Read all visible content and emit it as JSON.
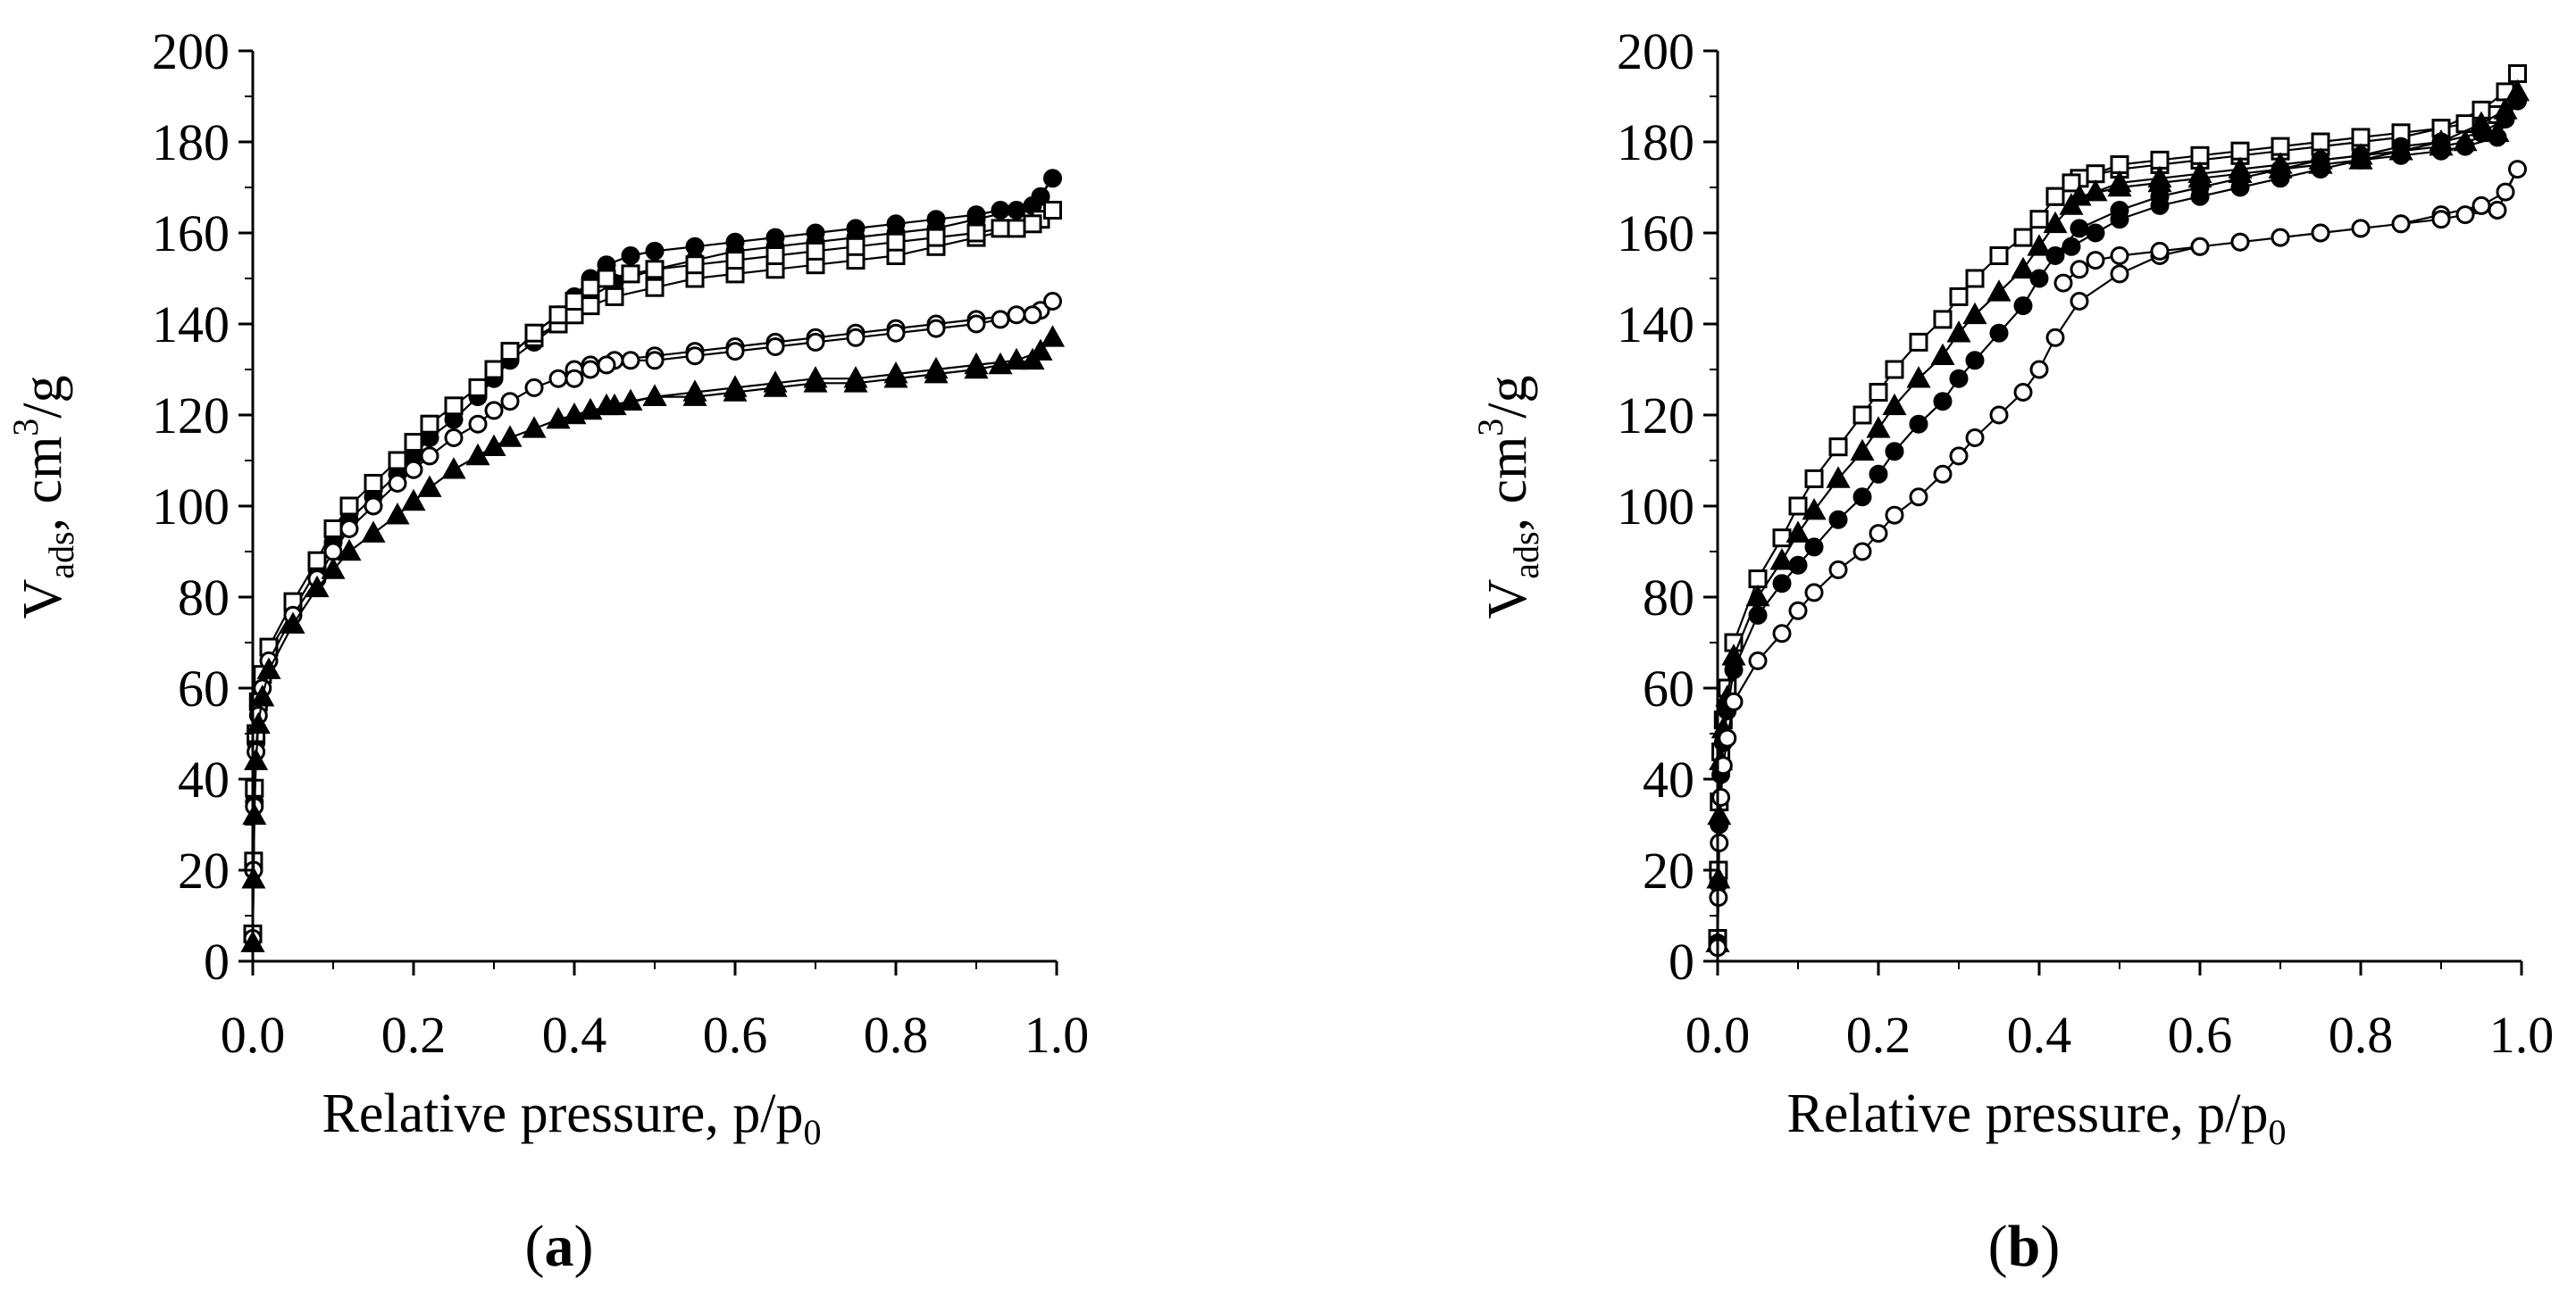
{
  "figure": {
    "panels": [
      {
        "open": "(",
        "letter": "a",
        "close": ")"
      },
      {
        "open": "(",
        "letter": "b",
        "close": ")"
      }
    ]
  },
  "chart_data": [
    {
      "id": "a",
      "type": "scatter",
      "title": "(a)",
      "panel_label": "(a)",
      "xlabel": "Relative pressure, p/p0",
      "ylabel": "Vads, cm3/g",
      "xlabel_parts": {
        "main": "Relative pressure, p/p",
        "sub": "0"
      },
      "ylabel_parts": {
        "main": "V",
        "sub": "ads",
        "rest": ", cm",
        "sup": "3",
        "end": "/g"
      },
      "xlim": [
        0,
        1.0
      ],
      "ylim": [
        0,
        200
      ],
      "xticks": [
        0.0,
        0.2,
        0.4,
        0.6,
        0.8,
        1.0
      ],
      "xtick_labels": [
        "0.0",
        "0.2",
        "0.4",
        "0.6",
        "0.8",
        "1.0"
      ],
      "yticks": [
        0,
        20,
        40,
        60,
        80,
        100,
        120,
        140,
        160,
        180,
        200
      ],
      "ytick_labels": [
        "0",
        "20",
        "40",
        "60",
        "80",
        "100",
        "120",
        "140",
        "160",
        "180",
        "200"
      ],
      "grid": false,
      "series": [
        {
          "name": "filled circles",
          "marker": "circle",
          "fill": "#000000",
          "x": [
            0.0,
            0.001,
            0.002,
            0.004,
            0.007,
            0.012,
            0.02,
            0.05,
            0.08,
            0.1,
            0.12,
            0.15,
            0.18,
            0.2,
            0.22,
            0.25,
            0.28,
            0.3,
            0.32,
            0.35,
            0.38,
            0.4,
            0.42,
            0.45,
            0.5,
            0.55,
            0.6,
            0.65,
            0.7,
            0.75,
            0.8,
            0.85,
            0.9,
            0.95,
            0.98,
            0.995,
            0.97,
            0.93,
            0.9,
            0.85,
            0.8,
            0.75,
            0.7,
            0.65,
            0.6,
            0.55,
            0.5,
            0.47,
            0.44,
            0.42,
            0.4,
            0.38,
            0.35,
            0.32,
            0.3
          ],
          "y": [
            5,
            20,
            35,
            48,
            56,
            62,
            68,
            77,
            86,
            92,
            97,
            102,
            107,
            111,
            115,
            119,
            124,
            128,
            132,
            136,
            140,
            143,
            146,
            149,
            152,
            154,
            156,
            157,
            158,
            159,
            160,
            161,
            163,
            165,
            168,
            172,
            166,
            165,
            164,
            163,
            162,
            161,
            160,
            159,
            158,
            157,
            156,
            155,
            153,
            150,
            146,
            142,
            138,
            133,
            130
          ]
        },
        {
          "name": "open squares",
          "marker": "square",
          "fill": "#ffffff",
          "x": [
            0.0,
            0.001,
            0.002,
            0.004,
            0.007,
            0.012,
            0.02,
            0.05,
            0.08,
            0.1,
            0.12,
            0.15,
            0.18,
            0.2,
            0.22,
            0.25,
            0.28,
            0.3,
            0.32,
            0.35,
            0.38,
            0.4,
            0.42,
            0.45,
            0.5,
            0.55,
            0.6,
            0.65,
            0.7,
            0.75,
            0.8,
            0.85,
            0.9,
            0.95,
            0.98,
            0.995,
            0.97,
            0.93,
            0.9,
            0.85,
            0.8,
            0.75,
            0.7,
            0.65,
            0.6,
            0.55,
            0.5,
            0.47,
            0.44,
            0.42,
            0.4,
            0.38,
            0.35
          ],
          "y": [
            6,
            22,
            38,
            50,
            57,
            63,
            69,
            79,
            88,
            95,
            100,
            105,
            110,
            114,
            118,
            122,
            126,
            130,
            134,
            137,
            140,
            142,
            144,
            146,
            148,
            150,
            151,
            152,
            153,
            154,
            155,
            157,
            159,
            161,
            163,
            165,
            162,
            161,
            160,
            159,
            158,
            157,
            156,
            155,
            154,
            153,
            152,
            151,
            150,
            148,
            145,
            142,
            138
          ]
        },
        {
          "name": "open circles",
          "marker": "circle",
          "fill": "#ffffff",
          "x": [
            0.0,
            0.001,
            0.002,
            0.004,
            0.007,
            0.012,
            0.02,
            0.05,
            0.08,
            0.1,
            0.12,
            0.15,
            0.18,
            0.2,
            0.22,
            0.25,
            0.28,
            0.3,
            0.32,
            0.35,
            0.38,
            0.4,
            0.42,
            0.45,
            0.5,
            0.55,
            0.6,
            0.65,
            0.7,
            0.75,
            0.8,
            0.85,
            0.9,
            0.95,
            0.98,
            0.995,
            0.97,
            0.93,
            0.9,
            0.85,
            0.8,
            0.75,
            0.7,
            0.65,
            0.6,
            0.55,
            0.5,
            0.47,
            0.44,
            0.42,
            0.4
          ],
          "y": [
            5,
            20,
            34,
            46,
            54,
            60,
            66,
            76,
            84,
            90,
            95,
            100,
            105,
            108,
            111,
            115,
            118,
            121,
            123,
            126,
            128,
            130,
            131,
            132,
            133,
            134,
            135,
            136,
            137,
            138,
            139,
            140,
            141,
            142,
            143,
            145,
            142,
            141,
            140,
            139,
            138,
            137,
            136,
            135,
            134,
            133,
            132,
            132,
            131,
            130,
            128
          ]
        },
        {
          "name": "filled triangles",
          "marker": "triangle",
          "fill": "#000000",
          "x": [
            0.0,
            0.001,
            0.002,
            0.004,
            0.007,
            0.012,
            0.02,
            0.05,
            0.08,
            0.1,
            0.12,
            0.15,
            0.18,
            0.2,
            0.22,
            0.25,
            0.28,
            0.3,
            0.32,
            0.35,
            0.38,
            0.4,
            0.42,
            0.45,
            0.5,
            0.55,
            0.6,
            0.65,
            0.7,
            0.75,
            0.8,
            0.85,
            0.9,
            0.95,
            0.98,
            0.995,
            0.97,
            0.93,
            0.9,
            0.85,
            0.8,
            0.75,
            0.7,
            0.65,
            0.6,
            0.55,
            0.5,
            0.47,
            0.44
          ],
          "y": [
            4,
            18,
            32,
            44,
            52,
            58,
            64,
            74,
            82,
            86,
            90,
            94,
            98,
            101,
            104,
            108,
            111,
            113,
            115,
            117,
            119,
            120,
            121,
            122,
            124,
            125,
            126,
            127,
            128,
            128,
            129,
            130,
            131,
            132,
            134,
            137,
            132,
            131,
            130,
            129,
            128,
            127,
            127,
            126,
            125,
            124,
            124,
            123,
            122
          ]
        }
      ]
    },
    {
      "id": "b",
      "type": "scatter",
      "title": "(b)",
      "panel_label": "(b)",
      "xlabel": "Relative pressure, p/p0",
      "ylabel": "Vads, cm3/g",
      "xlabel_parts": {
        "main": "Relative pressure, p/p",
        "sub": "0"
      },
      "ylabel_parts": {
        "main": "V",
        "sub": "ads",
        "rest": ", cm",
        "sup": "3",
        "end": "/g"
      },
      "xlim": [
        0,
        1.0
      ],
      "ylim": [
        0,
        200
      ],
      "xticks": [
        0.0,
        0.2,
        0.4,
        0.6,
        0.8,
        1.0
      ],
      "xtick_labels": [
        "0.0",
        "0.2",
        "0.4",
        "0.6",
        "0.8",
        "1.0"
      ],
      "yticks": [
        0,
        20,
        40,
        60,
        80,
        100,
        120,
        140,
        160,
        180,
        200
      ],
      "ytick_labels": [
        "0",
        "20",
        "40",
        "60",
        "80",
        "100",
        "120",
        "140",
        "160",
        "180",
        "200"
      ],
      "grid": false,
      "series": [
        {
          "name": "open squares",
          "marker": "square",
          "fill": "#ffffff",
          "x": [
            0.0,
            0.001,
            0.002,
            0.004,
            0.007,
            0.012,
            0.02,
            0.05,
            0.08,
            0.1,
            0.12,
            0.15,
            0.18,
            0.2,
            0.22,
            0.25,
            0.28,
            0.3,
            0.32,
            0.35,
            0.38,
            0.4,
            0.42,
            0.45,
            0.5,
            0.55,
            0.6,
            0.65,
            0.7,
            0.75,
            0.8,
            0.85,
            0.9,
            0.95,
            0.98,
            0.995,
            0.97,
            0.93,
            0.9,
            0.85,
            0.8,
            0.75,
            0.7,
            0.65,
            0.6,
            0.55,
            0.5,
            0.47,
            0.44,
            0.42
          ],
          "y": [
            5,
            20,
            35,
            46,
            53,
            60,
            70,
            84,
            93,
            100,
            106,
            113,
            120,
            125,
            130,
            136,
            141,
            146,
            150,
            155,
            159,
            163,
            168,
            172,
            174,
            175,
            176,
            177,
            178,
            179,
            180,
            181,
            183,
            187,
            191,
            195,
            186,
            184,
            183,
            182,
            181,
            180,
            179,
            178,
            177,
            176,
            175,
            173,
            171,
            168
          ]
        },
        {
          "name": "filled triangles",
          "marker": "triangle",
          "fill": "#000000",
          "x": [
            0.0,
            0.001,
            0.002,
            0.004,
            0.007,
            0.012,
            0.02,
            0.05,
            0.08,
            0.1,
            0.12,
            0.15,
            0.18,
            0.2,
            0.22,
            0.25,
            0.28,
            0.3,
            0.32,
            0.35,
            0.38,
            0.4,
            0.42,
            0.45,
            0.5,
            0.55,
            0.6,
            0.65,
            0.7,
            0.75,
            0.8,
            0.85,
            0.9,
            0.95,
            0.98,
            0.995,
            0.97,
            0.93,
            0.9,
            0.85,
            0.8,
            0.75,
            0.7,
            0.65,
            0.6,
            0.55,
            0.5,
            0.47,
            0.44
          ],
          "y": [
            4,
            18,
            32,
            44,
            51,
            58,
            67,
            80,
            88,
            94,
            99,
            106,
            112,
            117,
            122,
            128,
            133,
            138,
            142,
            147,
            152,
            157,
            162,
            168,
            170,
            171,
            172,
            173,
            174,
            175,
            176,
            178,
            180,
            184,
            187,
            191,
            182,
            180,
            179,
            178,
            177,
            176,
            175,
            174,
            173,
            172,
            171,
            169,
            166
          ]
        },
        {
          "name": "filled circles",
          "marker": "circle",
          "fill": "#000000",
          "x": [
            0.0,
            0.001,
            0.002,
            0.004,
            0.007,
            0.012,
            0.02,
            0.05,
            0.08,
            0.1,
            0.12,
            0.15,
            0.18,
            0.2,
            0.22,
            0.25,
            0.28,
            0.3,
            0.32,
            0.35,
            0.38,
            0.4,
            0.42,
            0.45,
            0.5,
            0.55,
            0.6,
            0.65,
            0.7,
            0.75,
            0.8,
            0.85,
            0.9,
            0.95,
            0.98,
            0.995,
            0.97,
            0.93,
            0.9,
            0.85,
            0.8,
            0.75,
            0.7,
            0.65,
            0.6,
            0.55,
            0.5,
            0.47,
            0.44
          ],
          "y": [
            4,
            17,
            30,
            41,
            48,
            55,
            64,
            76,
            83,
            87,
            91,
            97,
            102,
            107,
            112,
            118,
            123,
            128,
            132,
            138,
            144,
            150,
            155,
            161,
            165,
            168,
            170,
            172,
            174,
            176,
            177,
            179,
            180,
            182,
            185,
            189,
            181,
            179,
            178,
            177,
            176,
            174,
            172,
            170,
            168,
            166,
            163,
            160,
            157
          ]
        },
        {
          "name": "open circles",
          "marker": "circle",
          "fill": "#ffffff",
          "x": [
            0.0,
            0.001,
            0.002,
            0.004,
            0.007,
            0.012,
            0.02,
            0.05,
            0.08,
            0.1,
            0.12,
            0.15,
            0.18,
            0.2,
            0.22,
            0.25,
            0.28,
            0.3,
            0.32,
            0.35,
            0.38,
            0.4,
            0.42,
            0.45,
            0.5,
            0.55,
            0.6,
            0.65,
            0.7,
            0.75,
            0.8,
            0.85,
            0.9,
            0.95,
            0.98,
            0.995,
            0.97,
            0.93,
            0.9,
            0.85,
            0.8,
            0.75,
            0.7,
            0.65,
            0.6,
            0.55,
            0.5,
            0.47,
            0.45,
            0.43
          ],
          "y": [
            3,
            14,
            26,
            36,
            43,
            49,
            57,
            66,
            72,
            77,
            81,
            86,
            90,
            94,
            98,
            102,
            107,
            111,
            115,
            120,
            125,
            130,
            137,
            145,
            151,
            155,
            157,
            158,
            159,
            160,
            161,
            162,
            164,
            166,
            169,
            174,
            165,
            164,
            163,
            162,
            161,
            160,
            159,
            158,
            157,
            156,
            155,
            154,
            152,
            149
          ]
        }
      ]
    }
  ]
}
